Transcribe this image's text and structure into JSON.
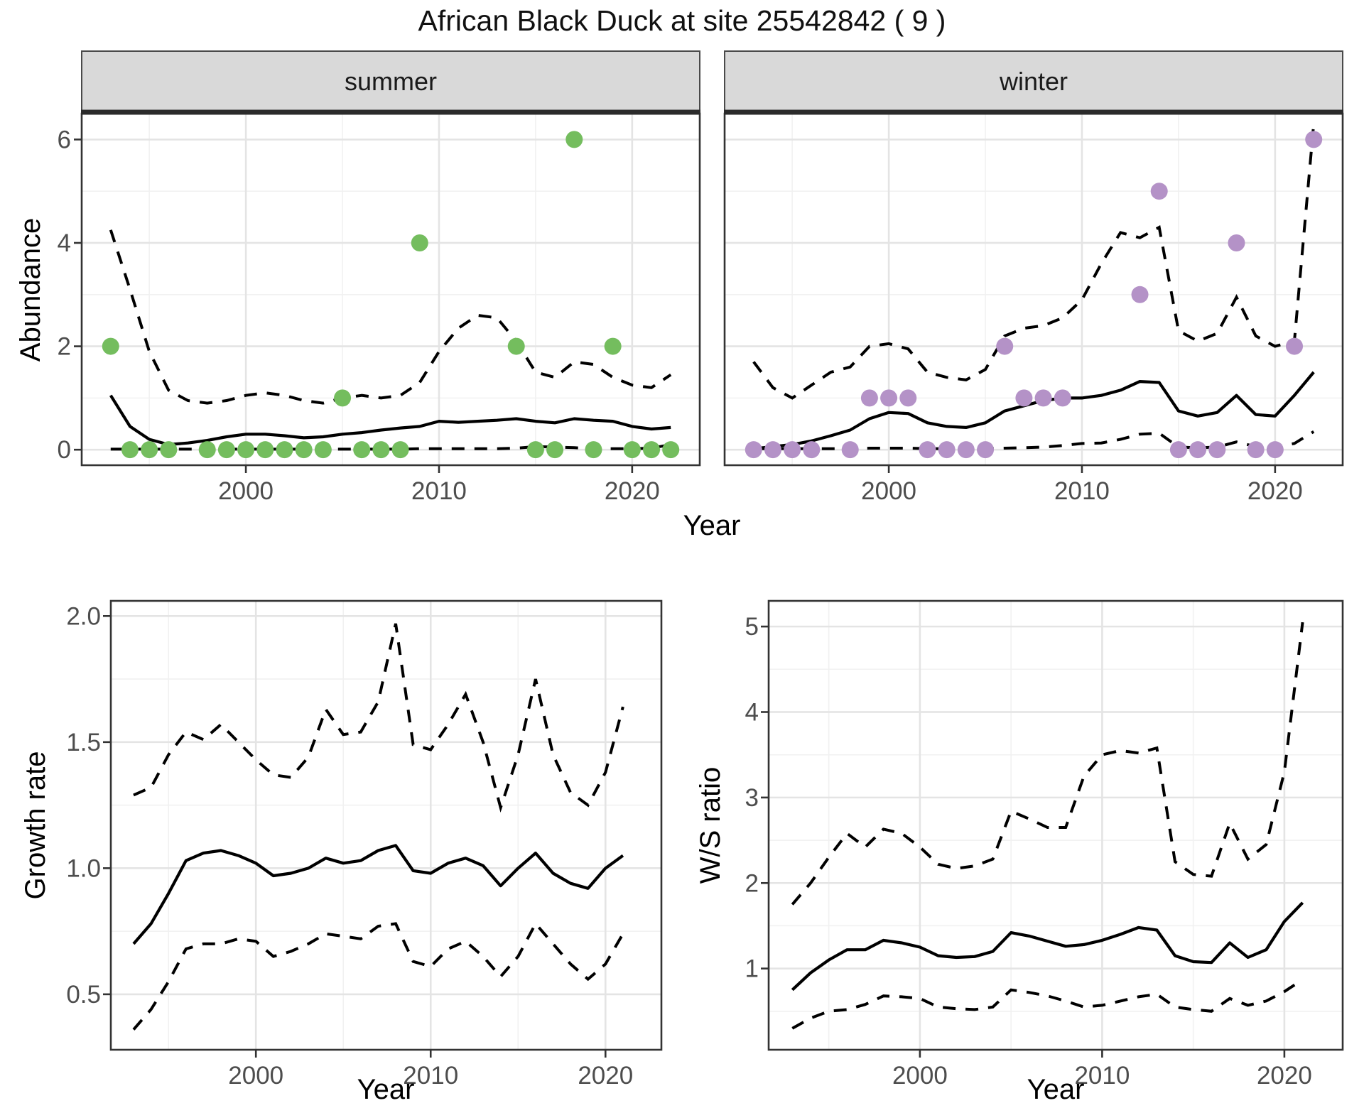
{
  "title": "African Black Duck at site 25542842 ( 9 )",
  "colors": {
    "summer_point": "#74BD5E",
    "winter_point": "#B492C7",
    "fit_line": "#000000",
    "ci_line": "#000000",
    "grid_major": "#E4E4E4",
    "grid_minor": "#F1F1F1",
    "panel_border": "#333333",
    "strip_bg": "#D9D9D9",
    "strip_border": "#4A4A4A",
    "strip_heavy_line": "#2B2B2B",
    "tick_text": "#4D4D4D",
    "tick_mark": "#333333"
  },
  "facets": [
    {
      "label": "summer"
    },
    {
      "label": "winter"
    }
  ],
  "axes": {
    "abundance": {
      "label": "Abundance"
    },
    "growth": {
      "label": "Growth rate"
    },
    "ws": {
      "label": "W/S ratio"
    },
    "year_top": {
      "label": "Year"
    },
    "year_bottom": {
      "label": "Year"
    }
  },
  "chart_data": [
    {
      "type": "scatter",
      "facet": "summer",
      "xlabel": "Year",
      "ylabel": "Abundance",
      "x": [
        1993,
        1994,
        1995,
        1996,
        1997,
        1998,
        1999,
        2000,
        2001,
        2002,
        2003,
        2004,
        2005,
        2006,
        2007,
        2008,
        2009,
        2010,
        2011,
        2012,
        2013,
        2014,
        2015,
        2016,
        2017,
        2018,
        2019,
        2020,
        2021,
        2022
      ],
      "observed": [
        2,
        0,
        0,
        0,
        null,
        0,
        0,
        0,
        0,
        0,
        0,
        0,
        1,
        0,
        0,
        0,
        4,
        null,
        null,
        null,
        null,
        2,
        0,
        0,
        6,
        0,
        2,
        0,
        0,
        0
      ],
      "fit": [
        1.05,
        0.45,
        0.2,
        0.1,
        0.13,
        0.18,
        0.25,
        0.3,
        0.3,
        0.27,
        0.23,
        0.25,
        0.3,
        0.33,
        0.38,
        0.42,
        0.45,
        0.55,
        0.53,
        0.55,
        0.57,
        0.6,
        0.55,
        0.52,
        0.6,
        0.57,
        0.55,
        0.45,
        0.4,
        0.43
      ],
      "ci_upper": [
        4.25,
        3.1,
        1.9,
        1.15,
        0.95,
        0.9,
        0.95,
        1.05,
        1.1,
        1.05,
        0.95,
        0.9,
        1.0,
        1.05,
        1.0,
        1.05,
        1.3,
        1.9,
        2.35,
        2.6,
        2.55,
        2.1,
        1.5,
        1.4,
        1.7,
        1.65,
        1.4,
        1.25,
        1.2,
        1.45
      ],
      "ci_lower": [
        0.01,
        0.01,
        0.01,
        0.01,
        0.01,
        0.01,
        0.01,
        0.01,
        0.01,
        0.01,
        0.01,
        0.01,
        0.01,
        0.01,
        0.01,
        0.01,
        0.02,
        0.02,
        0.02,
        0.02,
        0.02,
        0.03,
        0.06,
        0.05,
        0.04,
        0.02,
        0.02,
        0.02,
        0.03,
        0.1
      ],
      "xlim": [
        1991.5,
        2023.5
      ],
      "ylim": [
        -0.3,
        6.5
      ],
      "xticks": [
        "2000",
        "2010",
        "2020"
      ],
      "yticks": [
        "0",
        "2",
        "4",
        "6"
      ],
      "legend": "none",
      "grid": true
    },
    {
      "type": "scatter",
      "facet": "winter",
      "xlabel": "Year",
      "ylabel": "Abundance",
      "x": [
        1993,
        1994,
        1995,
        1996,
        1997,
        1998,
        1999,
        2000,
        2001,
        2002,
        2003,
        2004,
        2005,
        2006,
        2007,
        2008,
        2009,
        2010,
        2011,
        2012,
        2013,
        2014,
        2015,
        2016,
        2017,
        2018,
        2019,
        2020,
        2021,
        2022
      ],
      "observed": [
        0,
        0,
        0,
        0,
        null,
        0,
        1,
        1,
        1,
        0,
        0,
        0,
        0,
        2,
        1,
        1,
        1,
        null,
        null,
        null,
        3,
        5,
        0,
        0,
        0,
        4,
        0,
        0,
        2,
        6
      ],
      "fit": [
        0.02,
        0.06,
        0.1,
        0.17,
        0.27,
        0.38,
        0.6,
        0.72,
        0.7,
        0.52,
        0.45,
        0.43,
        0.52,
        0.75,
        0.85,
        0.95,
        1.0,
        1.0,
        1.05,
        1.15,
        1.32,
        1.3,
        0.75,
        0.65,
        0.72,
        1.05,
        0.68,
        0.65,
        1.05,
        1.5
      ],
      "ci_upper": [
        1.7,
        1.2,
        1.0,
        1.25,
        1.5,
        1.6,
        2.0,
        2.05,
        1.95,
        1.5,
        1.4,
        1.35,
        1.55,
        2.2,
        2.35,
        2.4,
        2.55,
        2.9,
        3.6,
        4.2,
        4.1,
        4.3,
        2.3,
        2.1,
        2.25,
        2.95,
        2.2,
        2.0,
        2.1,
        6.3
      ],
      "ci_lower": [
        0.02,
        0.02,
        0.02,
        0.02,
        0.02,
        0.02,
        0.03,
        0.03,
        0.03,
        0.02,
        0.02,
        0.02,
        0.02,
        0.03,
        0.04,
        0.05,
        0.08,
        0.12,
        0.13,
        0.2,
        0.3,
        0.32,
        0.05,
        0.04,
        0.05,
        0.15,
        0.06,
        0.05,
        0.12,
        0.35
      ],
      "xlim": [
        1991.5,
        2023.5
      ],
      "ylim": [
        -0.3,
        6.5
      ],
      "xticks": [
        "2000",
        "2010",
        "2020"
      ],
      "yticks": [
        "0",
        "2",
        "4",
        "6"
      ],
      "legend": "none",
      "grid": true
    },
    {
      "type": "line",
      "facet": null,
      "xlabel": "Year",
      "ylabel": "Growth rate",
      "x": [
        1993,
        1994,
        1995,
        1996,
        1997,
        1998,
        1999,
        2000,
        2001,
        2002,
        2003,
        2004,
        2005,
        2006,
        2007,
        2008,
        2009,
        2010,
        2011,
        2012,
        2013,
        2014,
        2015,
        2016,
        2017,
        2018,
        2019,
        2020,
        2021
      ],
      "fit": [
        0.7,
        0.78,
        0.9,
        1.03,
        1.06,
        1.07,
        1.05,
        1.02,
        0.97,
        0.98,
        1.0,
        1.04,
        1.02,
        1.03,
        1.07,
        1.09,
        0.99,
        0.98,
        1.02,
        1.04,
        1.01,
        0.93,
        1.0,
        1.06,
        0.98,
        0.94,
        0.92,
        1.0,
        1.05
      ],
      "ci_upper": [
        1.29,
        1.32,
        1.45,
        1.54,
        1.51,
        1.57,
        1.5,
        1.43,
        1.37,
        1.36,
        1.44,
        1.63,
        1.53,
        1.54,
        1.66,
        1.97,
        1.49,
        1.47,
        1.57,
        1.69,
        1.5,
        1.24,
        1.45,
        1.75,
        1.45,
        1.3,
        1.25,
        1.38,
        1.64
      ],
      "ci_lower": [
        0.36,
        0.44,
        0.55,
        0.68,
        0.7,
        0.7,
        0.72,
        0.71,
        0.65,
        0.67,
        0.7,
        0.74,
        0.73,
        0.72,
        0.77,
        0.78,
        0.63,
        0.61,
        0.68,
        0.71,
        0.65,
        0.57,
        0.65,
        0.78,
        0.7,
        0.62,
        0.56,
        0.62,
        0.74
      ],
      "xlim": [
        1991.7,
        2023.2
      ],
      "ylim": [
        0.28,
        2.06
      ],
      "xticks": [
        "2000",
        "2010",
        "2020"
      ],
      "yticks": [
        "0.5",
        "1.0",
        "1.5",
        "2.0"
      ],
      "legend": "none",
      "grid": true
    },
    {
      "type": "line",
      "facet": null,
      "xlabel": "Year",
      "ylabel": "W/S ratio",
      "x": [
        1993,
        1994,
        1995,
        1996,
        1997,
        1998,
        1999,
        2000,
        2001,
        2002,
        2003,
        2004,
        2005,
        2006,
        2007,
        2008,
        2009,
        2010,
        2011,
        2012,
        2013,
        2014,
        2015,
        2016,
        2017,
        2018,
        2019,
        2020,
        2021
      ],
      "fit": [
        0.75,
        0.95,
        1.1,
        1.22,
        1.22,
        1.33,
        1.3,
        1.25,
        1.15,
        1.13,
        1.14,
        1.2,
        1.42,
        1.38,
        1.32,
        1.26,
        1.28,
        1.33,
        1.4,
        1.48,
        1.45,
        1.15,
        1.08,
        1.07,
        1.3,
        1.13,
        1.22,
        1.55,
        1.77
      ],
      "ci_upper": [
        1.75,
        2.0,
        2.3,
        2.58,
        2.42,
        2.63,
        2.58,
        2.42,
        2.22,
        2.17,
        2.2,
        2.28,
        2.84,
        2.75,
        2.65,
        2.65,
        3.25,
        3.5,
        3.55,
        3.52,
        3.58,
        2.25,
        2.1,
        2.08,
        2.7,
        2.28,
        2.45,
        3.3,
        5.05
      ],
      "ci_lower": [
        0.3,
        0.42,
        0.5,
        0.52,
        0.58,
        0.68,
        0.67,
        0.65,
        0.55,
        0.53,
        0.52,
        0.55,
        0.75,
        0.72,
        0.68,
        0.62,
        0.55,
        0.57,
        0.62,
        0.67,
        0.7,
        0.55,
        0.52,
        0.5,
        0.65,
        0.57,
        0.62,
        0.73,
        0.87
      ],
      "xlim": [
        1991.7,
        2023.2
      ],
      "ylim": [
        0.05,
        5.3
      ],
      "xticks": [
        "2000",
        "2010",
        "2020"
      ],
      "yticks": [
        "1",
        "2",
        "3",
        "4",
        "5"
      ],
      "legend": "none",
      "grid": true
    }
  ]
}
